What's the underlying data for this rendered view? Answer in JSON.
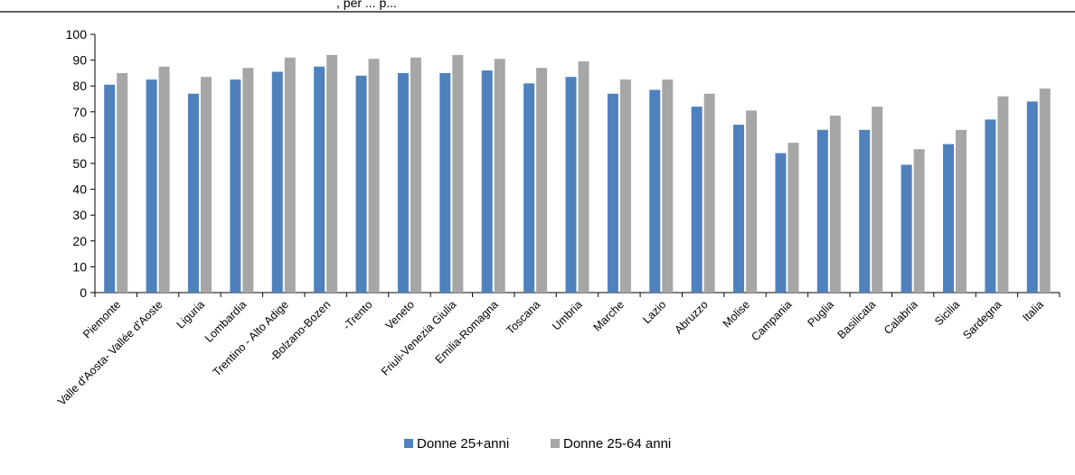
{
  "header_fragment": ", per ... p...",
  "chart_data": {
    "type": "bar",
    "categories": [
      "Piemonte",
      "Valle d'Aosta- Vallée d'Aoste",
      "Liguria",
      "Lombardia",
      "Trentino - Alto Adige",
      "-Bolzano-Bozen",
      "-Trento",
      "Veneto",
      "Friuli-Venezia Giulia",
      "Emilia-Romagna",
      "Toscana",
      "Umbria",
      "Marche",
      "Lazio",
      "Abruzzo",
      "Molise",
      "Campania",
      "Puglia",
      "Basilicata",
      "Calabria",
      "Sicilia",
      "Sardegna",
      "Italia"
    ],
    "series": [
      {
        "name": "Donne 25+anni",
        "color": "#4f81bd",
        "values": [
          80.5,
          82.5,
          77,
          82.5,
          85.5,
          87.5,
          84,
          85,
          85,
          86,
          81,
          83.5,
          77,
          78.5,
          72,
          65,
          54,
          63,
          63,
          49.5,
          57.5,
          67,
          74
        ]
      },
      {
        "name": "Donne 25-64 anni",
        "color": "#a6a6a6",
        "values": [
          85,
          87.5,
          83.5,
          87,
          91,
          92,
          90.5,
          91,
          92,
          90.5,
          87,
          89.5,
          82.5,
          82.5,
          77,
          70.5,
          58,
          68.5,
          72,
          55.5,
          63,
          76,
          79
        ]
      }
    ],
    "yticks": [
      0,
      10,
      20,
      30,
      40,
      50,
      60,
      70,
      80,
      90,
      100
    ],
    "ylim": [
      0,
      100
    ],
    "grid": false,
    "legend_position": "bottom"
  }
}
